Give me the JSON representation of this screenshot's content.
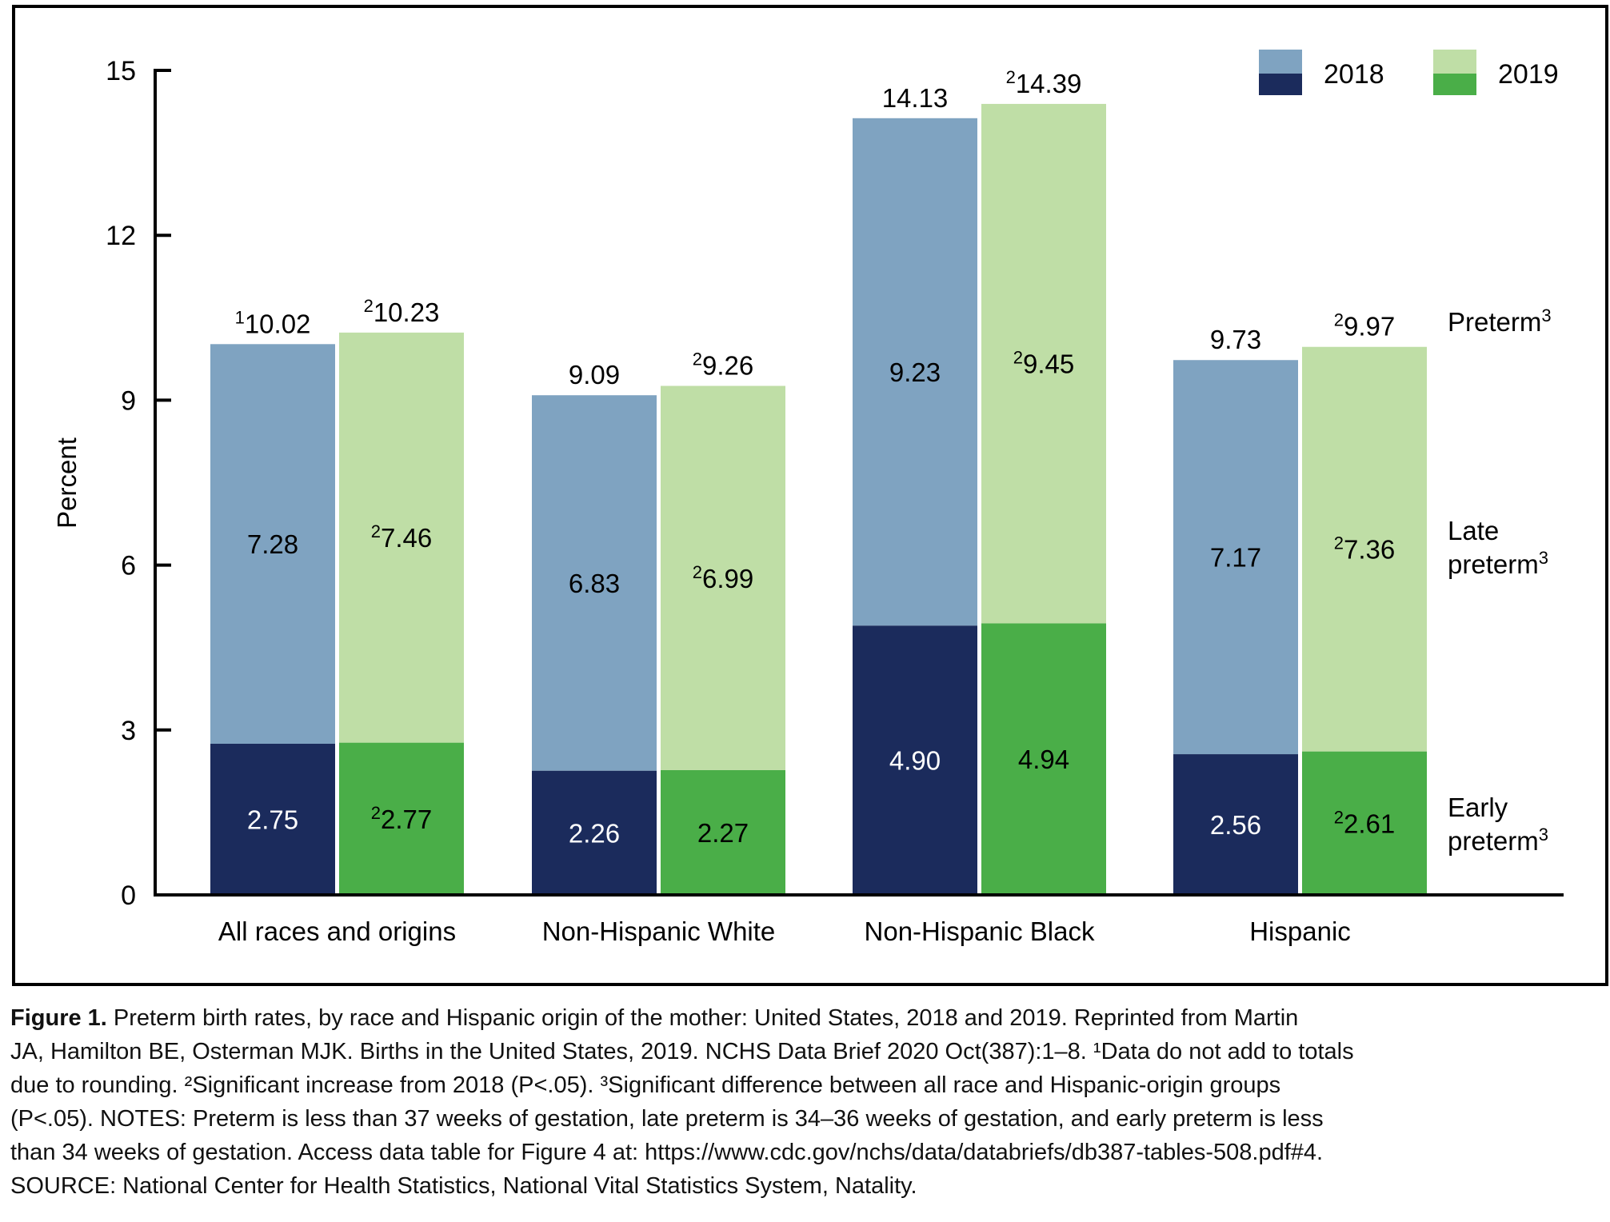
{
  "chart_data": {
    "type": "bar",
    "stacked": true,
    "ylabel": "Percent",
    "ylim": [
      0,
      15
    ],
    "yticks": [
      "0",
      "3",
      "6",
      "9",
      "12",
      "15"
    ],
    "grid": false,
    "legend_placement": "top-right",
    "categories": [
      "All races and origins",
      "Non-Hispanic White",
      "Non-Hispanic Black",
      "Hispanic"
    ],
    "series": [
      {
        "name": "2018",
        "colors": {
          "late": "#7fa3c1",
          "early": "#1b2b5c"
        },
        "early": [
          2.75,
          2.26,
          4.9,
          2.56
        ],
        "late": [
          7.28,
          6.83,
          9.23,
          7.17
        ],
        "total": [
          10.02,
          9.09,
          14.13,
          9.73
        ],
        "early_labels": [
          {
            "sup": "",
            "text": "2.75"
          },
          {
            "sup": "",
            "text": "2.26"
          },
          {
            "sup": "",
            "text": "4.90"
          },
          {
            "sup": "",
            "text": "2.56"
          }
        ],
        "late_labels": [
          {
            "sup": "",
            "text": "7.28"
          },
          {
            "sup": "",
            "text": "6.83"
          },
          {
            "sup": "",
            "text": "9.23"
          },
          {
            "sup": "",
            "text": "7.17"
          }
        ],
        "total_labels": [
          {
            "sup": "1",
            "text": "10.02"
          },
          {
            "sup": "",
            "text": "9.09"
          },
          {
            "sup": "",
            "text": "14.13"
          },
          {
            "sup": "",
            "text": "9.73"
          }
        ]
      },
      {
        "name": "2019",
        "colors": {
          "late": "#bfdea6",
          "early": "#4aae48"
        },
        "early": [
          2.77,
          2.27,
          4.94,
          2.61
        ],
        "late": [
          7.46,
          6.99,
          9.45,
          7.36
        ],
        "total": [
          10.23,
          9.26,
          14.39,
          9.97
        ],
        "early_labels": [
          {
            "sup": "2",
            "text": "2.77"
          },
          {
            "sup": "",
            "text": "2.27"
          },
          {
            "sup": "",
            "text": "4.94"
          },
          {
            "sup": "2",
            "text": "2.61"
          }
        ],
        "late_labels": [
          {
            "sup": "2",
            "text": "7.46"
          },
          {
            "sup": "2",
            "text": "6.99"
          },
          {
            "sup": "2",
            "text": "9.45"
          },
          {
            "sup": "2",
            "text": "7.36"
          }
        ],
        "total_labels": [
          {
            "sup": "2",
            "text": "10.23"
          },
          {
            "sup": "2",
            "text": "9.26"
          },
          {
            "sup": "2",
            "text": "14.39"
          },
          {
            "sup": "2",
            "text": "9.97"
          }
        ]
      }
    ],
    "segment_labels": {
      "preterm": {
        "lines": [
          "Preterm"
        ],
        "sup": "3"
      },
      "late": {
        "lines": [
          "Late",
          "preterm"
        ],
        "sup": "3"
      },
      "early": {
        "lines": [
          "Early",
          "preterm"
        ],
        "sup": "3"
      }
    }
  },
  "caption": {
    "figure_label": "Figure 1.",
    "lines": [
      " Preterm birth rates, by race and Hispanic origin of the mother: United States, 2018 and 2019. Reprinted from Martin",
      "JA, Hamilton BE, Osterman MJK. Births in the United States, 2019. NCHS Data Brief 2020 Oct(387):1–8. ¹Data do not add to totals",
      "due to rounding. ²Significant increase from 2018 (P<.05). ³Significant difference between all race and Hispanic-origin groups",
      "(P<.05). NOTES: Preterm is less than 37 weeks of gestation, late preterm is 34–36 weeks of gestation, and early preterm is less",
      "than 34 weeks of gestation. Access data table for Figure 4 at: https://www.cdc.gov/nchs/data/databriefs/db387-tables-508.pdf#4.",
      "SOURCE: National Center for Health Statistics, National Vital Statistics System, Natality."
    ]
  }
}
